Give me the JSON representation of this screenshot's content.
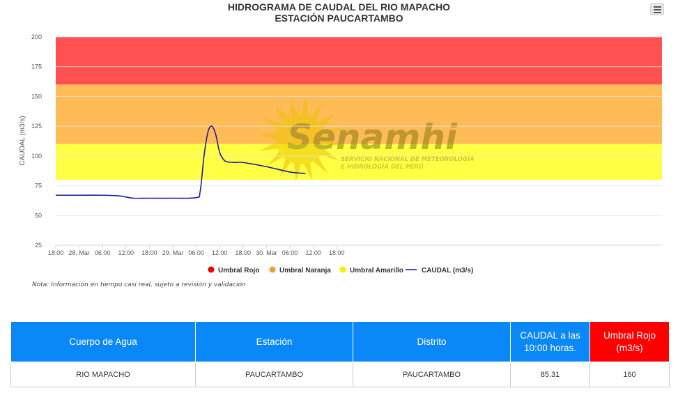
{
  "chart": {
    "title_line1": "HIDROGRAMA DE CAUDAL DEL RIO MAPACHO",
    "title_line2": "ESTACIÓN PAUCARTAMBO",
    "note": "Nota: Información en tiempo casi real, sujeto a revisión y validación",
    "watermark": {
      "brand": "Senamhi",
      "subtitle_line1": "SERVICIO NACIONAL DE METEOROLOGÍA",
      "subtitle_line2": "E HIDROLOGÍA DEL PERÚ"
    }
  },
  "chart_data": {
    "type": "line",
    "title": "HIDROGRAMA DE CAUDAL DEL RIO MAPACHO",
    "subtitle": "ESTACIÓN PAUCARTAMBO",
    "xlabel": "",
    "ylabel": "CAUDAL (m3/s)",
    "ylim": [
      25,
      200
    ],
    "yticks": [
      25,
      50,
      75,
      100,
      125,
      150,
      175,
      200
    ],
    "xlim": [
      "27 Mar 18:00",
      "31 Mar 00:00"
    ],
    "xticks": [
      "18:00",
      "28. Mar",
      "06:00",
      "12:00",
      "18:00",
      "29. Mar",
      "06:00",
      "12:00",
      "18:00",
      "30. Mar",
      "06:00",
      "12:00",
      "18:00"
    ],
    "grid": true,
    "legend_position": "bottom",
    "bands": [
      {
        "name": "Umbral Rojo",
        "from": 160,
        "to": 200,
        "color": "#ff5151"
      },
      {
        "name": "Umbral Naranja",
        "from": 110,
        "to": 160,
        "color": "#ffbb55"
      },
      {
        "name": "Umbral Amarillo",
        "from": 80,
        "to": 110,
        "color": "#ffff44"
      }
    ],
    "series": [
      {
        "name": "CAUDAL (m3/s)",
        "color": "#1a1aa6",
        "x": [
          "27 Mar 18:00",
          "28 Mar 00:00",
          "28 Mar 06:00",
          "28 Mar 10:00",
          "28 Mar 12:00",
          "28 Mar 14:00",
          "28 Mar 18:00",
          "29 Mar 00:00",
          "29 Mar 06:00",
          "29 Mar 07:00",
          "29 Mar 08:00",
          "29 Mar 09:00",
          "29 Mar 10:00",
          "29 Mar 11:00",
          "29 Mar 12:00",
          "29 Mar 13:00",
          "29 Mar 14:00",
          "29 Mar 16:00",
          "29 Mar 18:00",
          "30 Mar 00:00",
          "30 Mar 06:00",
          "30 Mar 10:00"
        ],
        "values": [
          67,
          67,
          67,
          66.5,
          65.5,
          64.5,
          64.5,
          64.5,
          65,
          70,
          100,
          120,
          125,
          118,
          103,
          97,
          95,
          94.5,
          94.5,
          91,
          86.5,
          85.3
        ]
      }
    ],
    "legend": [
      {
        "label": "Umbral Rojo",
        "color": "#ee0000",
        "symbol": "circle"
      },
      {
        "label": "Umbral Naranja",
        "color": "#f0a030",
        "symbol": "circle"
      },
      {
        "label": "Umbral Amarillo",
        "color": "#ffee00",
        "symbol": "circle"
      },
      {
        "label": "CAUDAL (m3/s)",
        "color": "#1a1aa6",
        "symbol": "line"
      }
    ]
  },
  "table": {
    "headers": [
      "Cuerpo de Agua",
      "Estación",
      "Distrito",
      "CAUDAL a las 10:00 horas.",
      "Umbral Rojo (m3/s)"
    ],
    "row": [
      "RIO MAPACHO",
      "PAUCARTAMBO",
      "PAUCARTAMBO",
      "85.31",
      "160"
    ]
  }
}
